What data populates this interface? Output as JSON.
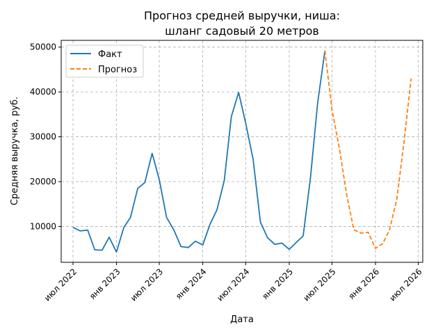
{
  "chart_data": {
    "type": "line",
    "title_lines": [
      "Прогноз средней выручки, ниша:",
      "шланг садовый 20 метров"
    ],
    "xlabel": "Дата",
    "ylabel": "Средняя выручка, руб.",
    "grid": true,
    "legend_position": "top-left",
    "xlim": [
      "2022-05-12",
      "2026-07-20"
    ],
    "ylim": [
      2000,
      51500
    ],
    "x_ticks": [
      {
        "date": "2022-07-01",
        "label": "июл 2022"
      },
      {
        "date": "2023-01-01",
        "label": "янв 2023"
      },
      {
        "date": "2023-07-01",
        "label": "июл 2023"
      },
      {
        "date": "2024-01-01",
        "label": "янв 2024"
      },
      {
        "date": "2024-07-01",
        "label": "июл 2024"
      },
      {
        "date": "2025-01-01",
        "label": "янв 2025"
      },
      {
        "date": "2025-07-01",
        "label": "июл 2025"
      },
      {
        "date": "2026-01-01",
        "label": "янв 2026"
      },
      {
        "date": "2026-07-01",
        "label": "июл 2026"
      }
    ],
    "y_ticks": [
      10000,
      20000,
      30000,
      40000,
      50000
    ],
    "series": [
      {
        "name": "Факт",
        "color": "#1f77b4",
        "style": "solid",
        "points": [
          [
            "2022-07-01",
            9800
          ],
          [
            "2022-08-01",
            9000
          ],
          [
            "2022-09-01",
            9200
          ],
          [
            "2022-10-01",
            4800
          ],
          [
            "2022-11-01",
            4700
          ],
          [
            "2022-12-01",
            7600
          ],
          [
            "2023-01-01",
            4300
          ],
          [
            "2023-02-01",
            9800
          ],
          [
            "2023-03-01",
            12000
          ],
          [
            "2023-04-01",
            18500
          ],
          [
            "2023-05-01",
            19800
          ],
          [
            "2023-06-01",
            26300
          ],
          [
            "2023-07-01",
            20500
          ],
          [
            "2023-08-01",
            12000
          ],
          [
            "2023-09-01",
            9200
          ],
          [
            "2023-10-01",
            5500
          ],
          [
            "2023-11-01",
            5300
          ],
          [
            "2023-12-01",
            6700
          ],
          [
            "2024-01-01",
            5900
          ],
          [
            "2024-02-01",
            10500
          ],
          [
            "2024-03-01",
            13700
          ],
          [
            "2024-04-01",
            20200
          ],
          [
            "2024-05-01",
            34500
          ],
          [
            "2024-06-01",
            39900
          ],
          [
            "2024-07-01",
            33000
          ],
          [
            "2024-08-01",
            25000
          ],
          [
            "2024-09-01",
            11000
          ],
          [
            "2024-10-01",
            7500
          ],
          [
            "2024-11-01",
            6000
          ],
          [
            "2024-12-01",
            6300
          ],
          [
            "2025-01-01",
            4900
          ],
          [
            "2025-02-01",
            6500
          ],
          [
            "2025-03-01",
            7900
          ],
          [
            "2025-04-01",
            21000
          ],
          [
            "2025-05-01",
            37500
          ],
          [
            "2025-06-01",
            49200
          ]
        ]
      },
      {
        "name": "Прогноз",
        "color": "#ff7f0e",
        "style": "dashed",
        "points": [
          [
            "2025-06-01",
            49200
          ],
          [
            "2025-07-01",
            36000
          ],
          [
            "2025-08-01",
            27500
          ],
          [
            "2025-09-01",
            17000
          ],
          [
            "2025-10-01",
            9300
          ],
          [
            "2025-11-01",
            8500
          ],
          [
            "2025-12-01",
            8700
          ],
          [
            "2026-01-01",
            5100
          ],
          [
            "2026-02-01",
            6200
          ],
          [
            "2026-03-01",
            9200
          ],
          [
            "2026-04-01",
            16000
          ],
          [
            "2026-05-01",
            28500
          ],
          [
            "2026-06-01",
            43000
          ]
        ]
      }
    ]
  }
}
